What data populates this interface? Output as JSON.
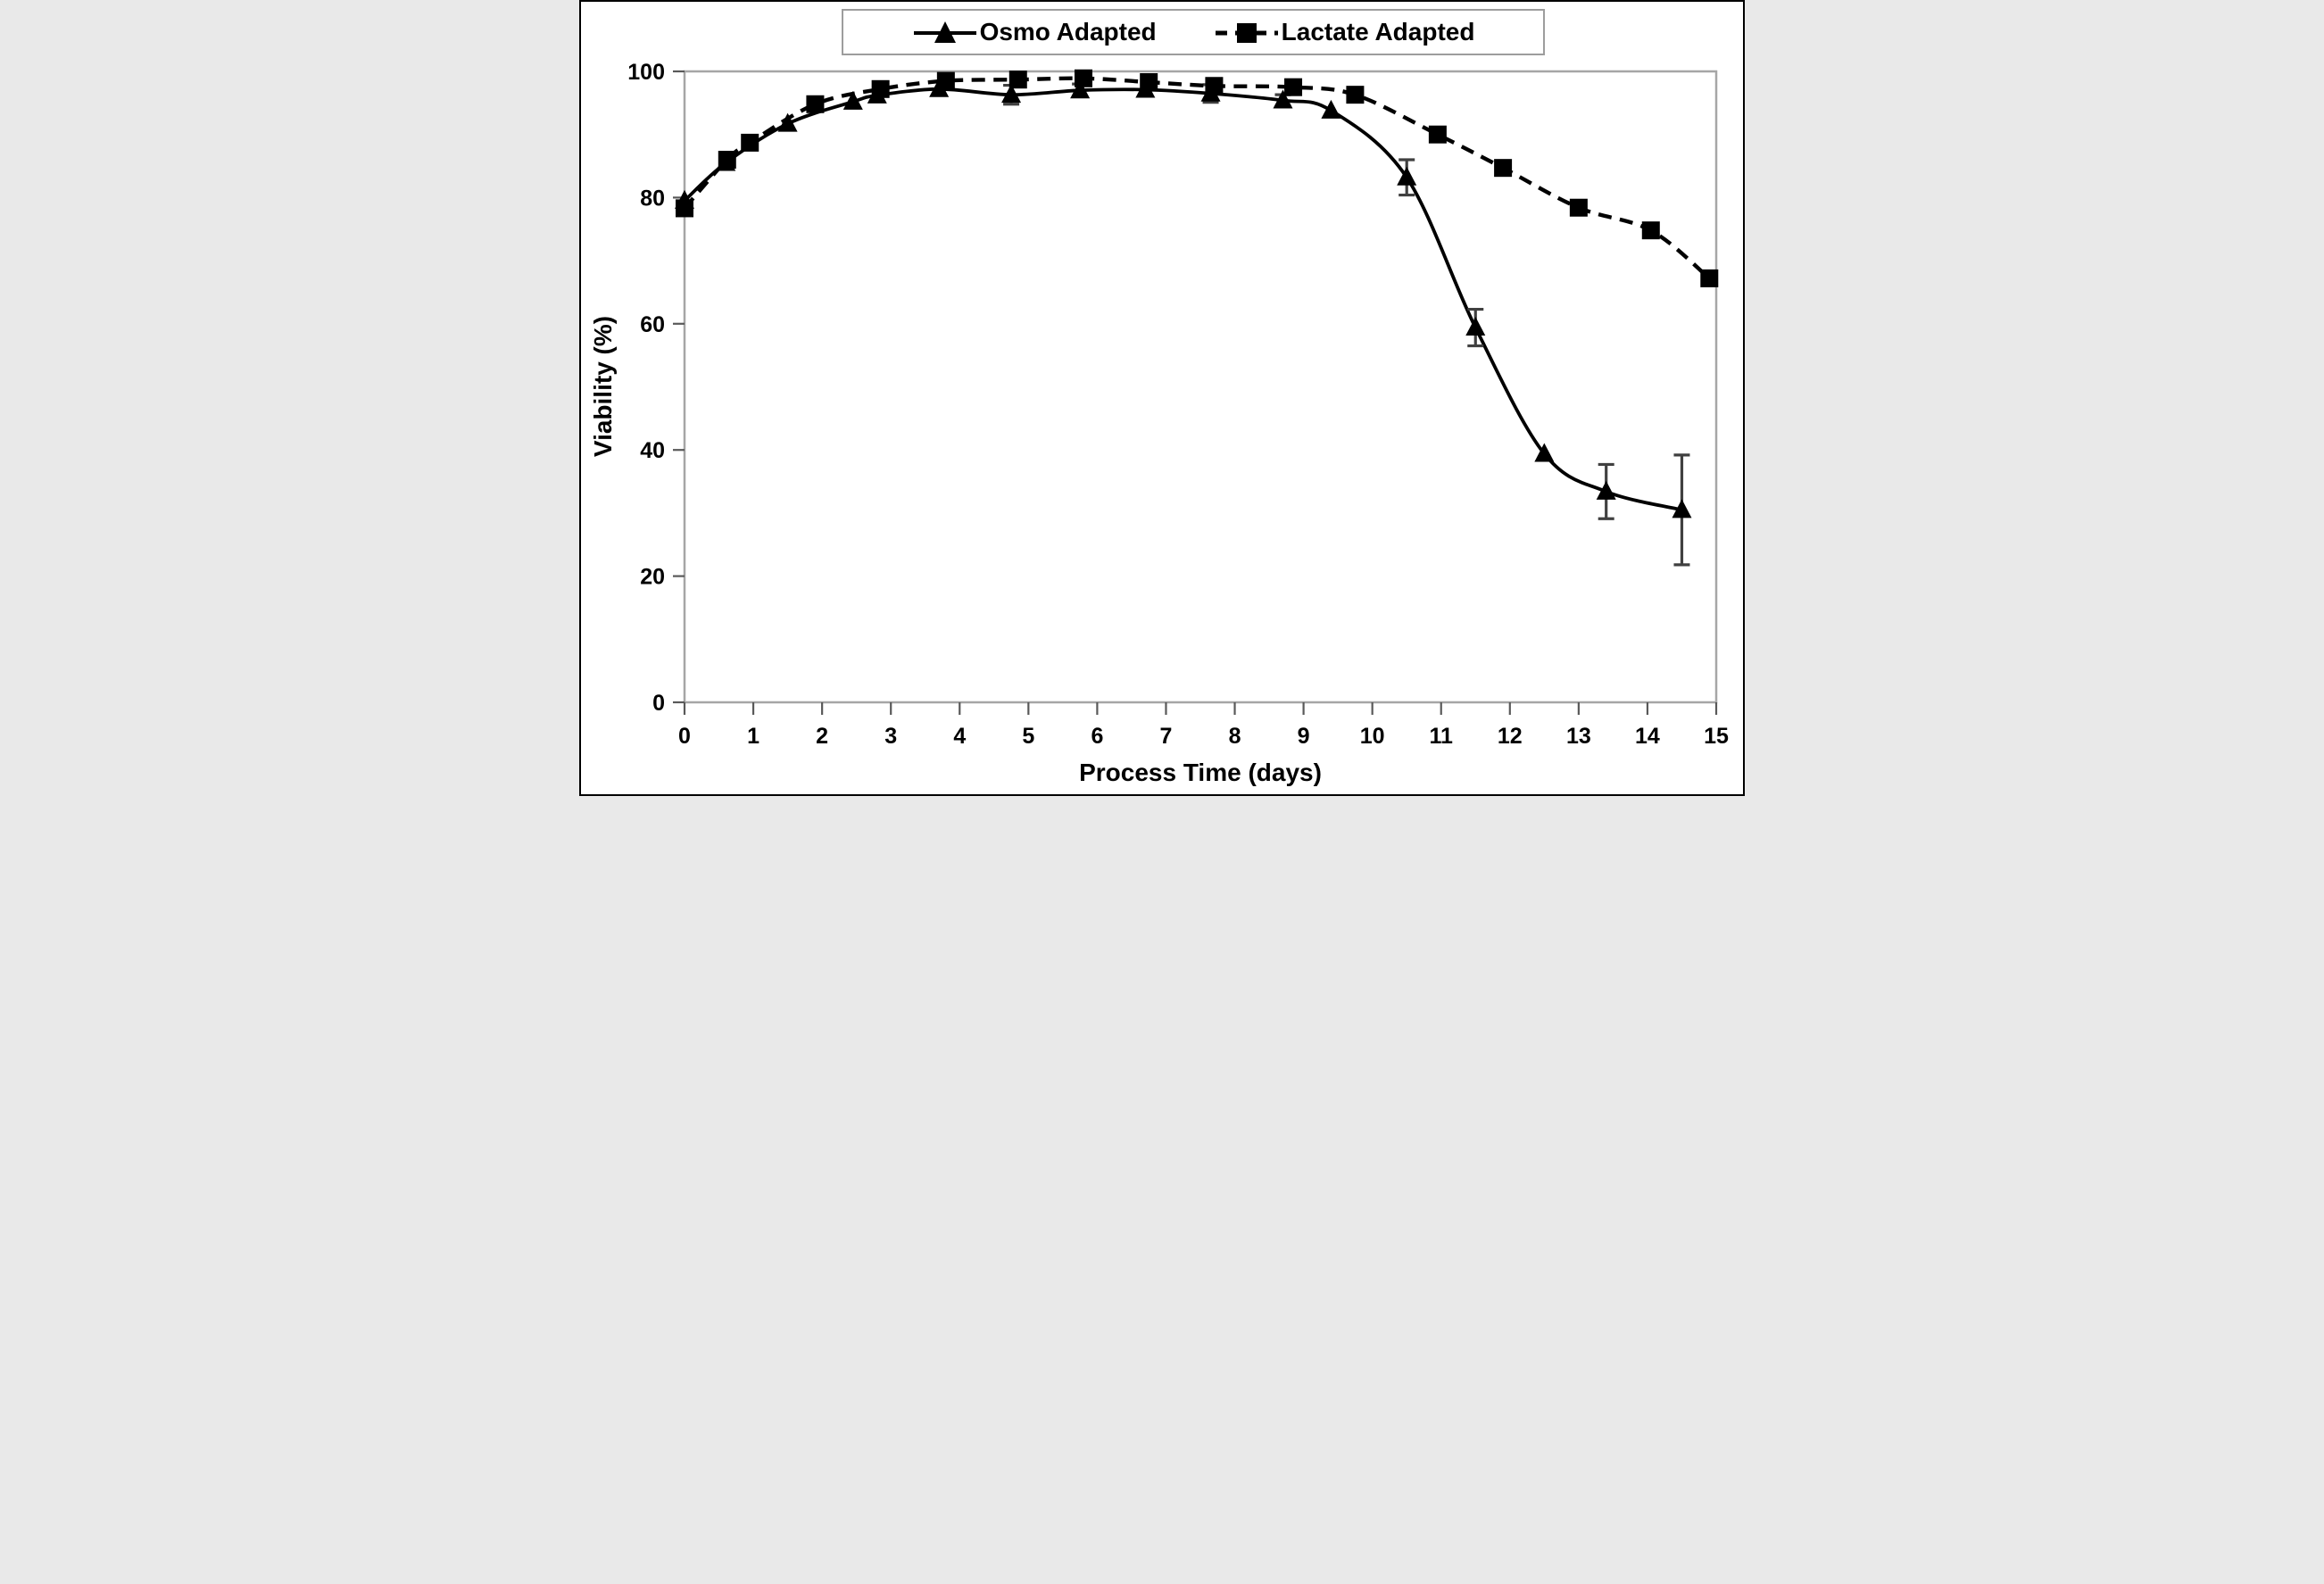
{
  "figure": {
    "background": "#ffffff",
    "frame_color": "#a6a6a6",
    "tick_color": "#595959",
    "error_bar_color": "#404040",
    "series_color": "#000000"
  },
  "chart_data": {
    "type": "line",
    "title": "",
    "xlabel": "Process Time (days)",
    "ylabel": "Viability (%)",
    "xlim": [
      0,
      15
    ],
    "ylim": [
      0,
      100
    ],
    "x_ticks": [
      0,
      1,
      2,
      3,
      4,
      5,
      6,
      7,
      8,
      9,
      10,
      11,
      12,
      13,
      14,
      15
    ],
    "y_ticks": [
      0,
      20,
      40,
      60,
      80,
      100
    ],
    "grid": false,
    "legend_position": "top-center",
    "series": [
      {
        "name": "Osmo Adapted",
        "marker": "triangle",
        "line_style": "solid",
        "color": "#000000",
        "points": [
          {
            "x": 0,
            "y": 79.5
          },
          {
            "x": 0.6,
            "y": 85.5
          },
          {
            "x": 1.5,
            "y": 91.7
          },
          {
            "x": 2.45,
            "y": 95.2
          },
          {
            "x": 2.8,
            "y": 96.2
          },
          {
            "x": 3.7,
            "y": 97.2
          },
          {
            "x": 4.75,
            "y": 96.3,
            "err": 1.5
          },
          {
            "x": 5.75,
            "y": 97.0,
            "err": 1.0
          },
          {
            "x": 6.7,
            "y": 97.1
          },
          {
            "x": 7.65,
            "y": 96.5,
            "err": 1.4
          },
          {
            "x": 8.7,
            "y": 95.4,
            "err": 0.9
          },
          {
            "x": 9.4,
            "y": 93.8
          },
          {
            "x": 10.5,
            "y": 83.2,
            "err": 2.8
          },
          {
            "x": 11.5,
            "y": 59.4,
            "err": 2.9
          },
          {
            "x": 12.5,
            "y": 39.4
          },
          {
            "x": 13.4,
            "y": 33.4,
            "err": 4.3
          },
          {
            "x": 14.5,
            "y": 30.5,
            "err": 8.7
          }
        ]
      },
      {
        "name": "Lactate Adapted",
        "marker": "square",
        "line_style": "dashed",
        "color": "#000000",
        "points": [
          {
            "x": 0,
            "y": 78.3
          },
          {
            "x": 0.62,
            "y": 86.0
          },
          {
            "x": 0.95,
            "y": 88.7
          },
          {
            "x": 1.9,
            "y": 94.8
          },
          {
            "x": 2.85,
            "y": 97.2
          },
          {
            "x": 3.8,
            "y": 98.5
          },
          {
            "x": 4.85,
            "y": 98.7
          },
          {
            "x": 5.8,
            "y": 98.9
          },
          {
            "x": 6.75,
            "y": 98.3
          },
          {
            "x": 7.7,
            "y": 97.7
          },
          {
            "x": 8.85,
            "y": 97.5
          },
          {
            "x": 9.75,
            "y": 96.3
          },
          {
            "x": 10.95,
            "y": 90.0
          },
          {
            "x": 11.9,
            "y": 84.7
          },
          {
            "x": 13.0,
            "y": 78.4
          },
          {
            "x": 14.05,
            "y": 74.8
          },
          {
            "x": 14.9,
            "y": 67.2
          }
        ]
      }
    ]
  }
}
